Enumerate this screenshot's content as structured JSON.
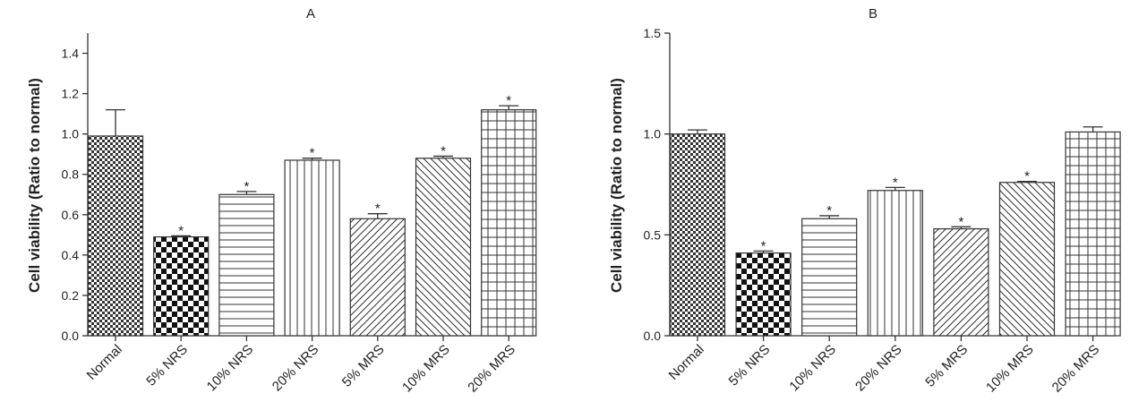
{
  "chart_data": [
    {
      "type": "bar",
      "title": "A",
      "ylabel": "Cell viability (Ratio to normal)",
      "xlabel": "",
      "categories": [
        "Normal",
        "5% NRS",
        "10% NRS",
        "20% NRS",
        "5% MRS",
        "10% MRS",
        "20% MRS"
      ],
      "values": [
        0.99,
        0.49,
        0.7,
        0.87,
        0.58,
        0.88,
        1.12
      ],
      "errors": [
        0.13,
        0.005,
        0.015,
        0.01,
        0.025,
        0.01,
        0.02
      ],
      "significance": [
        "",
        "*",
        "*",
        "*",
        "*",
        "*",
        "*"
      ],
      "ylim": [
        0,
        1.5
      ],
      "yticks": [
        0.0,
        0.2,
        0.4,
        0.6,
        0.8,
        1.0,
        1.2,
        1.4
      ],
      "ytick_labels": [
        "0.0",
        "0.2",
        "0.4",
        "0.6",
        "0.8",
        "1.0",
        "1.2",
        "1.4"
      ],
      "grid": false,
      "legend": "none",
      "patterns": [
        "checker-fine",
        "checker-large",
        "hlines",
        "vlines",
        "diag-up",
        "diag-down",
        "grid"
      ]
    },
    {
      "type": "bar",
      "title": "B",
      "ylabel": "Cell viability (Ratio to normal)",
      "xlabel": "",
      "categories": [
        "Normal",
        "5% NRS",
        "10% NRS",
        "20% NRS",
        "5% MRS",
        "10% MRS",
        "20% MRS"
      ],
      "values": [
        1.0,
        0.41,
        0.58,
        0.72,
        0.53,
        0.76,
        1.01
      ],
      "errors": [
        0.02,
        0.01,
        0.015,
        0.015,
        0.01,
        0.005,
        0.025
      ],
      "significance": [
        "",
        "*",
        "*",
        "*",
        "*",
        "*",
        ""
      ],
      "ylim": [
        0,
        1.5
      ],
      "yticks": [
        0.0,
        0.5,
        1.0,
        1.5
      ],
      "ytick_labels": [
        "0.0",
        "0.5",
        "1.0",
        "1.5"
      ],
      "grid": false,
      "legend": "none",
      "patterns": [
        "checker-fine",
        "checker-large",
        "hlines",
        "vlines",
        "diag-up",
        "diag-down",
        "grid"
      ]
    }
  ]
}
